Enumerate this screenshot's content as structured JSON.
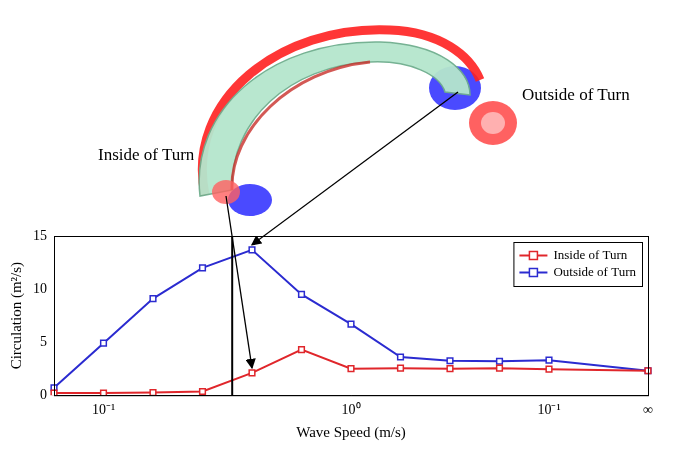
{
  "chart_data": {
    "type": "line",
    "x_label": "Wave Speed (m/s)",
    "y_label": "Circulation (m²/s)",
    "categories": [
      null,
      "10⁻¹",
      null,
      null,
      null,
      null,
      "10⁰",
      null,
      null,
      null,
      "10⁻¹",
      null,
      "∞"
    ],
    "series": [
      {
        "name": "Inside of Turn",
        "color": "#e0262b",
        "marker": "square",
        "values": [
          0.2,
          0.2,
          0.25,
          0.35,
          2.1,
          4.3,
          2.5,
          2.55,
          2.5,
          2.55,
          2.45,
          null,
          2.3
        ]
      },
      {
        "name": "Outside of Turn",
        "color": "#2b2bd0",
        "marker": "square",
        "values": [
          0.7,
          4.9,
          9.1,
          12.0,
          13.7,
          9.5,
          6.7,
          3.6,
          3.25,
          3.2,
          3.3,
          null,
          2.3
        ]
      }
    ],
    "ylim": [
      0,
      15
    ],
    "yticks": [
      0,
      5,
      10,
      15
    ],
    "grid": false,
    "legend": "upper right",
    "vline": 3.6,
    "annotations": [
      {
        "text": "Inside of Turn",
        "series": "Inside of Turn",
        "index": 4
      },
      {
        "text": "Outside of Turn",
        "series": "Outside of Turn",
        "index": 4
      }
    ]
  }
}
